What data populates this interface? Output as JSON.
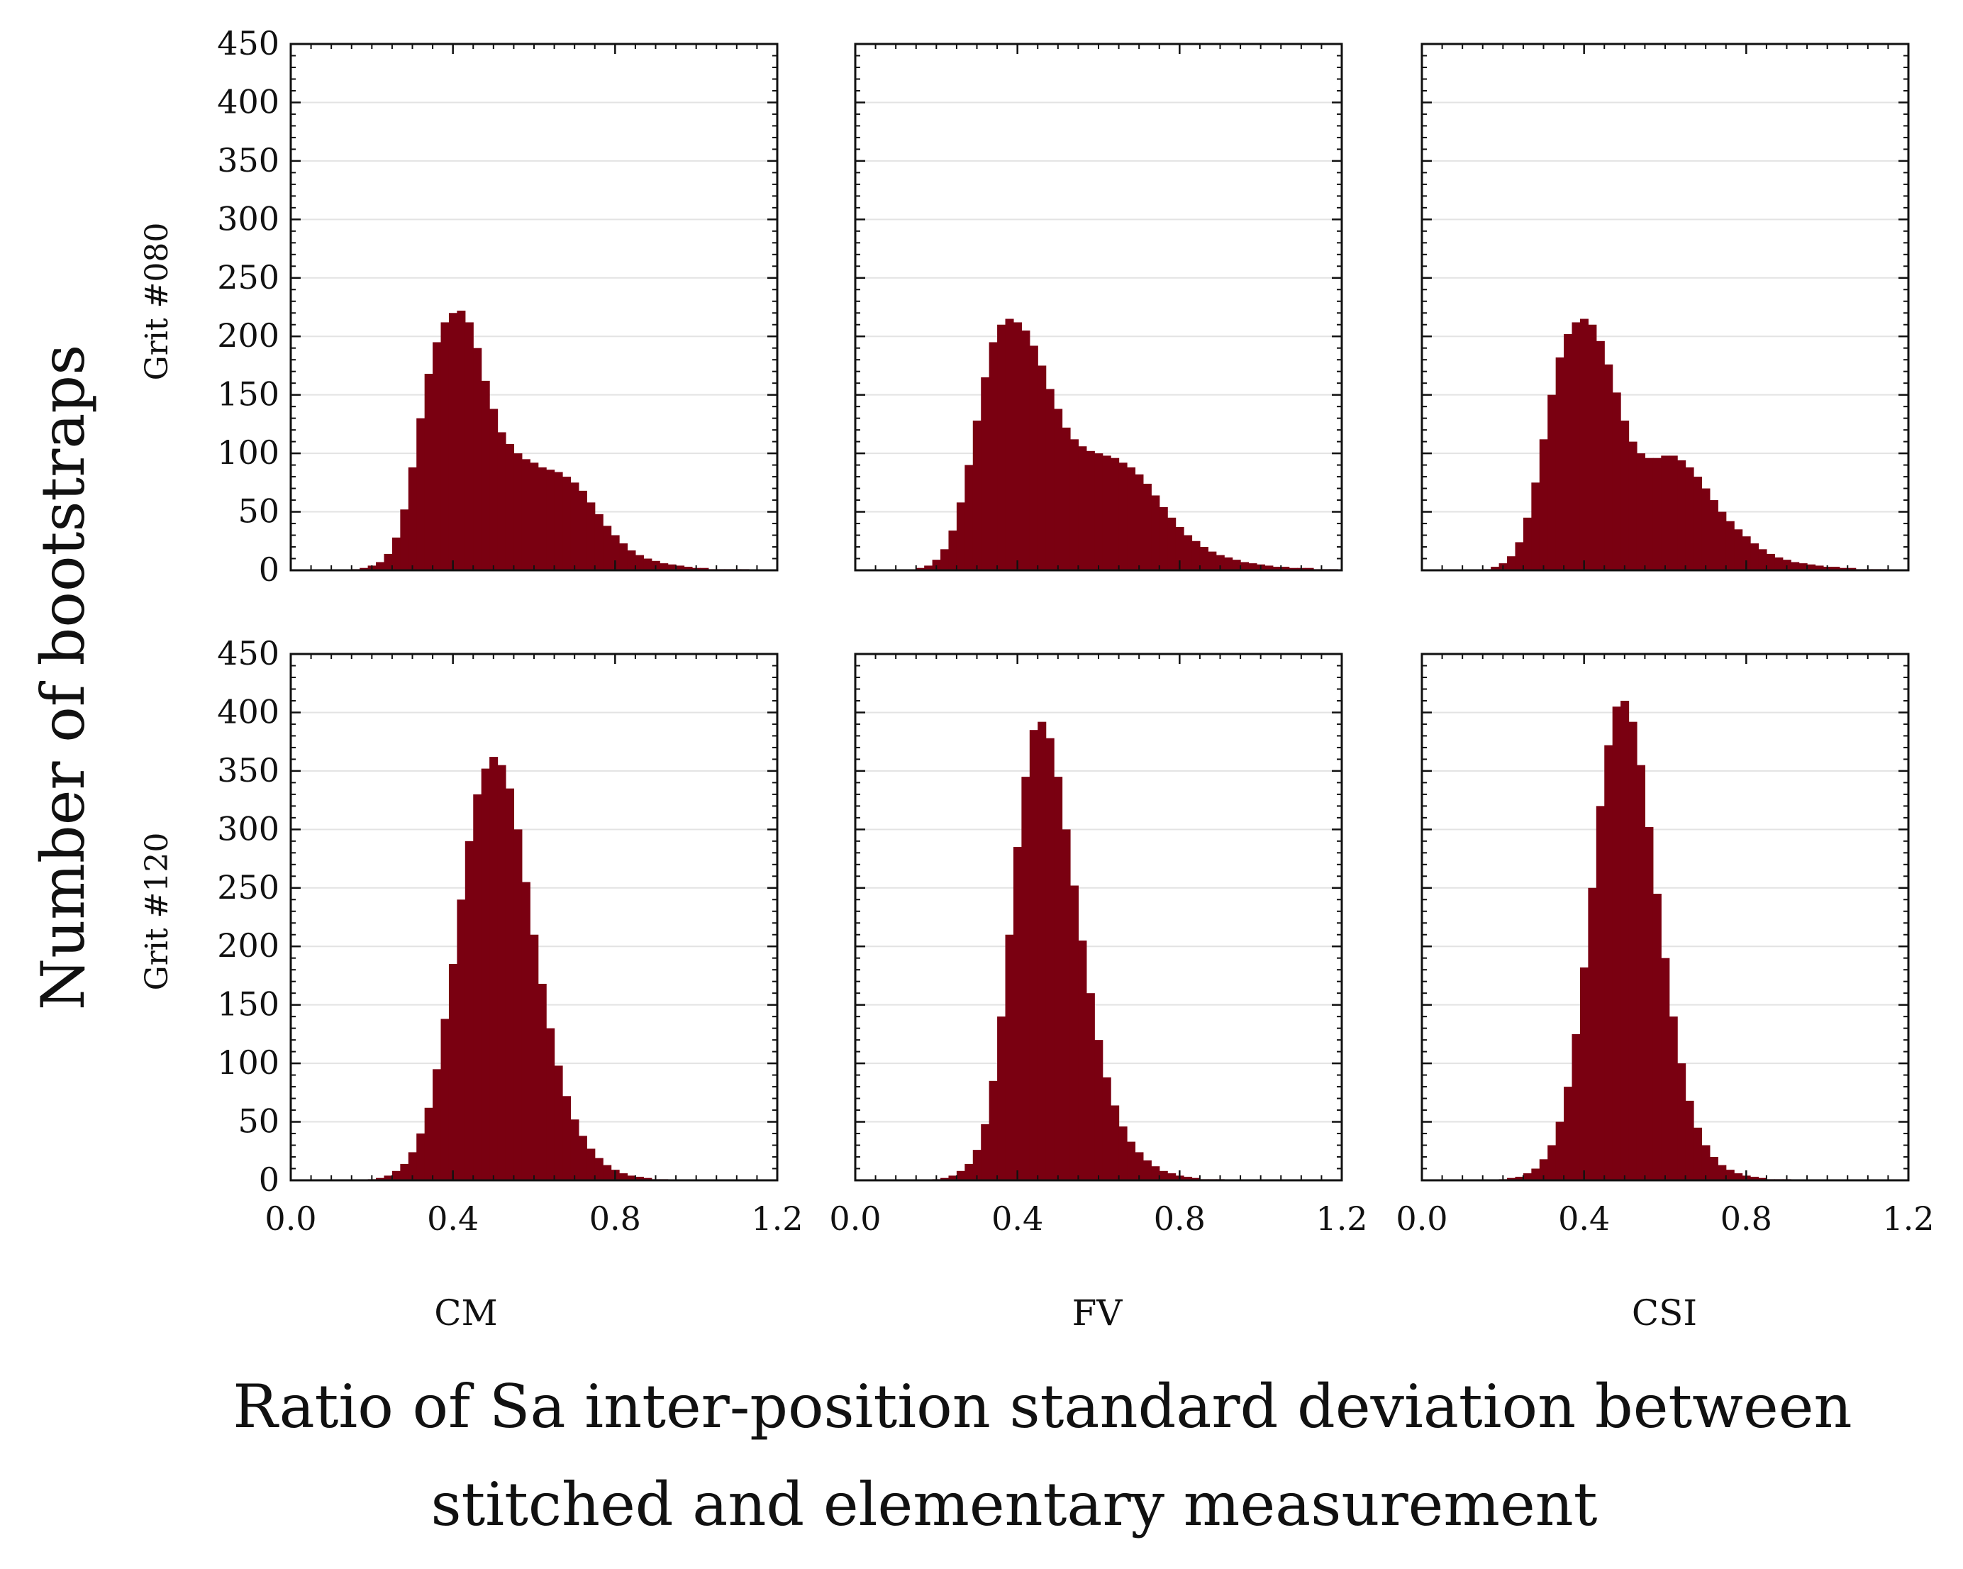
{
  "figure": {
    "y_axis_label": "Number of bootstraps",
    "x_axis_label_line1": "Ratio of Sa inter-position standard deviation between",
    "x_axis_label_line2": "stitched and elementary measurement",
    "row_labels": [
      "Grit #080",
      "Grit #120"
    ],
    "column_labels": [
      "CM",
      "FV",
      "CSI"
    ],
    "bar_color": "#7a0011",
    "y_ticks": [
      0,
      50,
      100,
      150,
      200,
      250,
      300,
      350,
      400,
      450
    ],
    "x_ticks": [
      0.0,
      0.4,
      0.8,
      1.2
    ],
    "x_tick_labels": [
      "0.0",
      "0.4",
      "0.8",
      "1.2"
    ]
  },
  "chart_data": [
    {
      "type": "bar",
      "title": "CM",
      "row": "Grit #080",
      "xlim": [
        0,
        1.2
      ],
      "ylim": [
        0,
        450
      ],
      "x": [
        0.16,
        0.18,
        0.2,
        0.22,
        0.24,
        0.26,
        0.28,
        0.3,
        0.32,
        0.34,
        0.36,
        0.38,
        0.4,
        0.42,
        0.44,
        0.46,
        0.48,
        0.5,
        0.52,
        0.54,
        0.56,
        0.58,
        0.6,
        0.62,
        0.64,
        0.66,
        0.68,
        0.7,
        0.72,
        0.74,
        0.76,
        0.78,
        0.8,
        0.82,
        0.84,
        0.86,
        0.88,
        0.9,
        0.92,
        0.94,
        0.96,
        0.98,
        1.0,
        1.02,
        1.04,
        1.06,
        1.08,
        1.1,
        1.12,
        1.14,
        1.16,
        1.18,
        1.2
      ],
      "values": [
        1,
        2,
        4,
        7,
        14,
        28,
        52,
        88,
        130,
        168,
        195,
        212,
        220,
        222,
        212,
        190,
        162,
        138,
        118,
        108,
        100,
        95,
        92,
        88,
        86,
        84,
        80,
        75,
        68,
        58,
        48,
        38,
        30,
        23,
        17,
        13,
        10,
        8,
        6,
        5,
        4,
        3,
        2,
        2,
        1,
        1,
        1,
        1,
        1,
        0,
        0,
        0,
        0
      ]
    },
    {
      "type": "bar",
      "title": "FV",
      "row": "Grit #080",
      "xlim": [
        0,
        1.2
      ],
      "ylim": [
        0,
        450
      ],
      "x": [
        0.16,
        0.18,
        0.2,
        0.22,
        0.24,
        0.26,
        0.28,
        0.3,
        0.32,
        0.34,
        0.36,
        0.38,
        0.4,
        0.42,
        0.44,
        0.46,
        0.48,
        0.5,
        0.52,
        0.54,
        0.56,
        0.58,
        0.6,
        0.62,
        0.64,
        0.66,
        0.68,
        0.7,
        0.72,
        0.74,
        0.76,
        0.78,
        0.8,
        0.82,
        0.84,
        0.86,
        0.88,
        0.9,
        0.92,
        0.94,
        0.96,
        0.98,
        1.0,
        1.02,
        1.04,
        1.06,
        1.08,
        1.1,
        1.12,
        1.14,
        1.16,
        1.18,
        1.2
      ],
      "values": [
        2,
        4,
        9,
        18,
        34,
        58,
        90,
        128,
        165,
        195,
        210,
        215,
        212,
        205,
        192,
        175,
        155,
        138,
        122,
        112,
        106,
        102,
        100,
        98,
        96,
        92,
        88,
        82,
        74,
        64,
        54,
        45,
        37,
        30,
        25,
        20,
        16,
        13,
        11,
        9,
        7,
        6,
        5,
        4,
        3,
        3,
        2,
        2,
        2,
        1,
        1,
        1,
        0
      ]
    },
    {
      "type": "bar",
      "title": "CSI",
      "row": "Grit #080",
      "xlim": [
        0,
        1.2
      ],
      "ylim": [
        0,
        450
      ],
      "x": [
        0.16,
        0.18,
        0.2,
        0.22,
        0.24,
        0.26,
        0.28,
        0.3,
        0.32,
        0.34,
        0.36,
        0.38,
        0.4,
        0.42,
        0.44,
        0.46,
        0.48,
        0.5,
        0.52,
        0.54,
        0.56,
        0.58,
        0.6,
        0.62,
        0.64,
        0.66,
        0.68,
        0.7,
        0.72,
        0.74,
        0.76,
        0.78,
        0.8,
        0.82,
        0.84,
        0.86,
        0.88,
        0.9,
        0.92,
        0.94,
        0.96,
        0.98,
        1.0,
        1.02,
        1.04,
        1.06,
        1.08,
        1.1,
        1.12,
        1.14,
        1.16,
        1.18,
        1.2
      ],
      "values": [
        1,
        3,
        6,
        12,
        24,
        45,
        75,
        112,
        150,
        182,
        202,
        212,
        215,
        210,
        196,
        176,
        152,
        128,
        110,
        100,
        96,
        96,
        98,
        98,
        94,
        88,
        80,
        70,
        60,
        50,
        42,
        35,
        29,
        23,
        18,
        14,
        11,
        9,
        7,
        6,
        5,
        4,
        3,
        3,
        2,
        2,
        1,
        1,
        1,
        1,
        0,
        0,
        0
      ]
    },
    {
      "type": "bar",
      "title": "CM",
      "row": "Grit #120",
      "xlim": [
        0,
        1.2
      ],
      "ylim": [
        0,
        450
      ],
      "x": [
        0.2,
        0.22,
        0.24,
        0.26,
        0.28,
        0.3,
        0.32,
        0.34,
        0.36,
        0.38,
        0.4,
        0.42,
        0.44,
        0.46,
        0.48,
        0.5,
        0.52,
        0.54,
        0.56,
        0.58,
        0.6,
        0.62,
        0.64,
        0.66,
        0.68,
        0.7,
        0.72,
        0.74,
        0.76,
        0.78,
        0.8,
        0.82,
        0.84,
        0.86,
        0.88,
        0.9,
        0.92,
        0.94
      ],
      "values": [
        1,
        2,
        4,
        8,
        14,
        24,
        40,
        62,
        95,
        138,
        185,
        240,
        290,
        330,
        352,
        362,
        355,
        335,
        300,
        255,
        210,
        168,
        130,
        98,
        72,
        52,
        38,
        27,
        19,
        13,
        9,
        6,
        4,
        3,
        2,
        1,
        1,
        0
      ]
    },
    {
      "type": "bar",
      "title": "FV",
      "row": "Grit #120",
      "xlim": [
        0,
        1.2
      ],
      "ylim": [
        0,
        450
      ],
      "x": [
        0.2,
        0.22,
        0.24,
        0.26,
        0.28,
        0.3,
        0.32,
        0.34,
        0.36,
        0.38,
        0.4,
        0.42,
        0.44,
        0.46,
        0.48,
        0.5,
        0.52,
        0.54,
        0.56,
        0.58,
        0.6,
        0.62,
        0.64,
        0.66,
        0.68,
        0.7,
        0.72,
        0.74,
        0.76,
        0.78,
        0.8,
        0.82,
        0.84,
        0.86,
        0.88,
        0.9,
        0.92,
        0.94
      ],
      "values": [
        1,
        2,
        4,
        8,
        14,
        26,
        48,
        85,
        140,
        210,
        285,
        345,
        385,
        392,
        378,
        345,
        300,
        252,
        205,
        160,
        120,
        88,
        64,
        46,
        33,
        24,
        17,
        12,
        8,
        6,
        4,
        3,
        2,
        1,
        1,
        1,
        0,
        0
      ]
    },
    {
      "type": "bar",
      "title": "CSI",
      "row": "Grit #120",
      "xlim": [
        0,
        1.2
      ],
      "ylim": [
        0,
        450
      ],
      "x": [
        0.2,
        0.22,
        0.24,
        0.26,
        0.28,
        0.3,
        0.32,
        0.34,
        0.36,
        0.38,
        0.4,
        0.42,
        0.44,
        0.46,
        0.48,
        0.5,
        0.52,
        0.54,
        0.56,
        0.58,
        0.6,
        0.62,
        0.64,
        0.66,
        0.68,
        0.7,
        0.72,
        0.74,
        0.76,
        0.78,
        0.8,
        0.82,
        0.84,
        0.86,
        0.88,
        0.9,
        0.92,
        0.94
      ],
      "values": [
        1,
        2,
        3,
        6,
        10,
        18,
        30,
        50,
        80,
        125,
        182,
        250,
        320,
        372,
        405,
        410,
        392,
        355,
        302,
        245,
        190,
        140,
        100,
        68,
        45,
        30,
        20,
        13,
        9,
        6,
        4,
        3,
        2,
        1,
        1,
        1,
        0,
        0
      ]
    }
  ]
}
